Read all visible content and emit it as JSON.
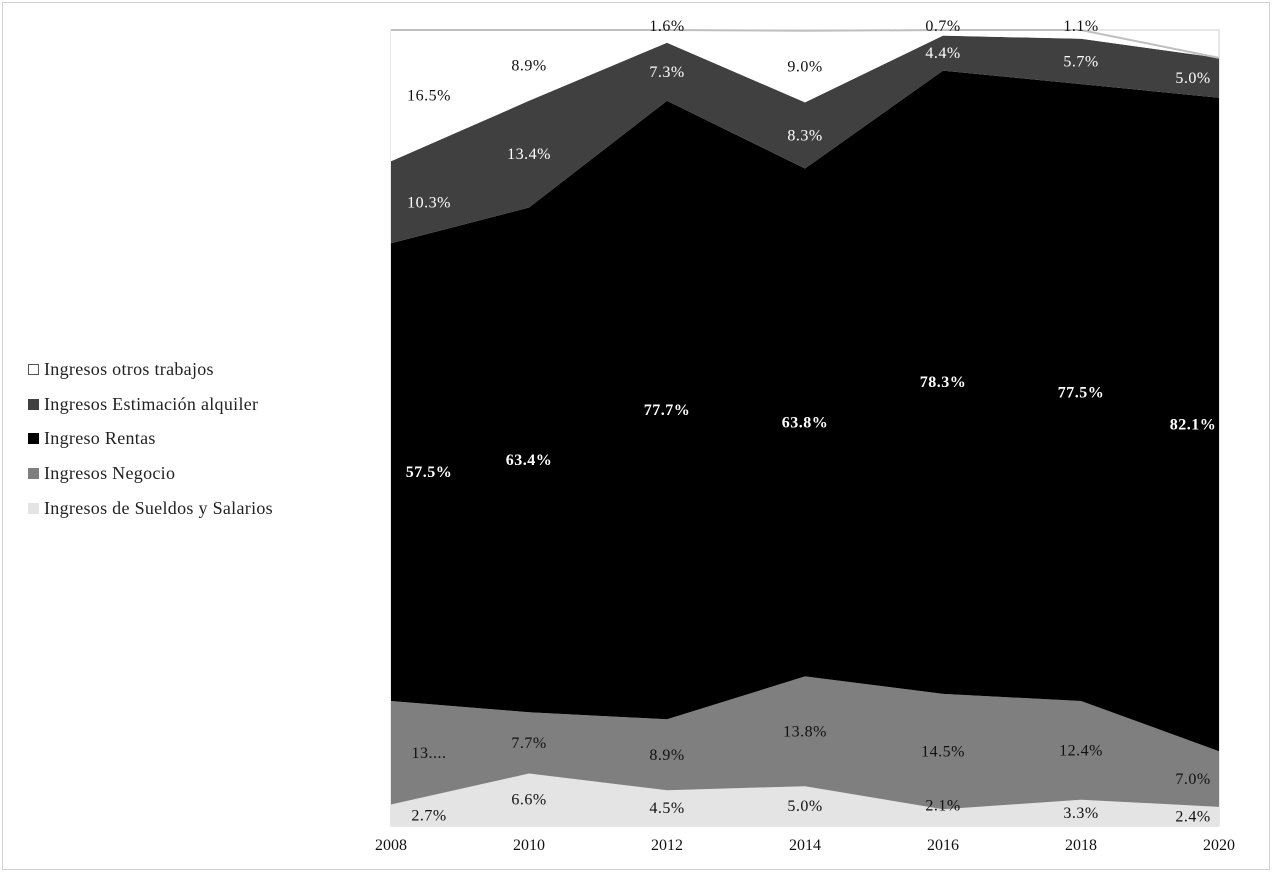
{
  "chart_data": {
    "type": "area",
    "stacked": true,
    "normalized_percent": true,
    "x": [
      "2008",
      "2010",
      "2012",
      "2014",
      "2016",
      "2018",
      "2020"
    ],
    "ylim": [
      0,
      100
    ],
    "grid": false,
    "legend_position": "left",
    "series": [
      {
        "name": "Ingresos de Sueldos y Salarios",
        "values": [
          2.7,
          6.6,
          4.5,
          5.0,
          2.1,
          3.3,
          2.4
        ],
        "labels": [
          "2.7%",
          "6.6%",
          "4.5%",
          "5.0%",
          "2.1%",
          "3.3%",
          "2.4%"
        ],
        "color": "#e4e4e4",
        "label_color": "#111111"
      },
      {
        "name": "Ingresos Negocio",
        "values": [
          13.0,
          7.7,
          8.9,
          13.8,
          14.5,
          12.4,
          7.0
        ],
        "labels": [
          "13....",
          "7.7%",
          "8.9%",
          "13.8%",
          "14.5%",
          "12.4%",
          "7.0%"
        ],
        "color": "#7f7f7f",
        "label_color": "#111111"
      },
      {
        "name": "Ingreso Rentas",
        "values": [
          57.5,
          63.4,
          77.7,
          63.8,
          78.3,
          77.5,
          82.1
        ],
        "labels": [
          "57.5%",
          "63.4%",
          "77.7%",
          "63.8%",
          "78.3%",
          "77.5%",
          "82.1%"
        ],
        "color": "#000000",
        "label_color": "#ffffff"
      },
      {
        "name": "Ingresos Estimación alquiler",
        "values": [
          10.3,
          13.4,
          7.3,
          8.3,
          4.4,
          5.7,
          5.0
        ],
        "labels": [
          "10.3%",
          "13.4%",
          "7.3%",
          "8.3%",
          "4.4%",
          "5.7%",
          "5.0%"
        ],
        "color": "#404040",
        "label_color": "#ffffff"
      },
      {
        "name": "Ingresos otros trabajos",
        "values": [
          16.5,
          8.9,
          1.6,
          9.0,
          0.7,
          1.1,
          0.0
        ],
        "labels": [
          "16.5%",
          "8.9%",
          "1.6%",
          "9.0%",
          "0.7%",
          "1.1%",
          ""
        ],
        "color": "#ffffff",
        "label_color": "#111111"
      }
    ]
  },
  "legend": {
    "items": [
      {
        "label": "Ingresos otros trabajos",
        "swatch": "#ffffff"
      },
      {
        "label": "Ingresos Estimación alquiler",
        "swatch": "#404040"
      },
      {
        "label": "Ingreso Rentas",
        "swatch": "#000000"
      },
      {
        "label": "Ingresos Negocio",
        "swatch": "#7f7f7f"
      },
      {
        "label": "Ingresos de Sueldos y Salarios",
        "swatch": "#e4e4e4"
      }
    ]
  }
}
